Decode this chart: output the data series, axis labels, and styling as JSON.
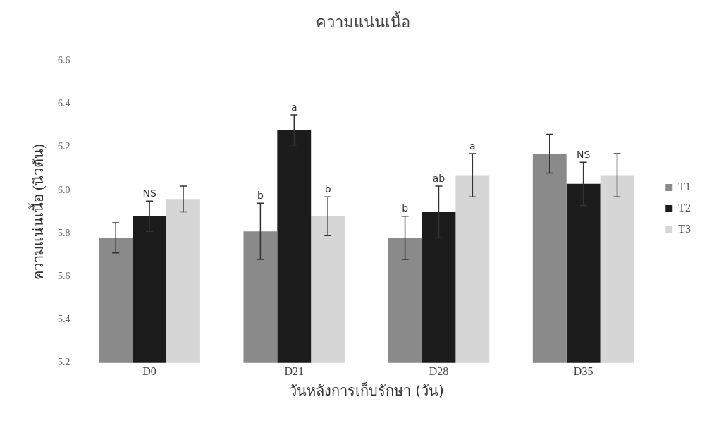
{
  "chart_data": {
    "type": "bar",
    "title": "ความแน่นเนื้อ",
    "xlabel": "วันหลังการเก็บรักษา (วัน)",
    "ylabel": "ความแน่นเนื้อ (นิวตัน)",
    "categories": [
      "D0",
      "D21",
      "D28",
      "D35"
    ],
    "series": [
      {
        "name": "T1",
        "color": "#8a8a8a",
        "values": [
          5.78,
          5.81,
          5.78,
          6.17
        ],
        "errors": [
          0.07,
          0.13,
          0.1,
          0.09
        ],
        "value_labels": [
          null,
          "b",
          "b",
          null
        ]
      },
      {
        "name": "T2",
        "color": "#1c1c1c",
        "values": [
          5.88,
          6.28,
          5.9,
          6.03
        ],
        "errors": [
          0.07,
          0.07,
          0.12,
          0.1
        ],
        "value_labels": [
          "NS",
          "a",
          "ab",
          "NS"
        ]
      },
      {
        "name": "T3",
        "color": "#d6d6d6",
        "values": [
          5.96,
          5.88,
          6.07,
          6.07
        ],
        "errors": [
          0.06,
          0.09,
          0.1,
          0.1
        ],
        "value_labels": [
          null,
          "b",
          "a",
          null
        ]
      }
    ],
    "ylim": [
      5.2,
      6.6
    ],
    "yticks": [
      5.2,
      5.4,
      5.6,
      5.8,
      {
        "value": 6.0,
        "label": "6.0"
      },
      6.2,
      6.4,
      6.6
    ],
    "grid": false,
    "legend": "right"
  }
}
